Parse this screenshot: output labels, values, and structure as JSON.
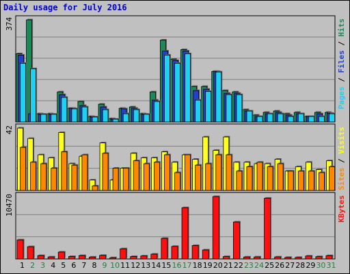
{
  "title": "Daily usage for July 2016",
  "colors": {
    "hits": "#1a8a5a",
    "files": "#2040d0",
    "pages": "#20d0f0",
    "visits": "#ffff20",
    "sites": "#ff8800",
    "kbytes": "#ff1010",
    "weekend_day": "#208040",
    "weekday": "#000000"
  },
  "chart_data": [
    {
      "type": "bar",
      "name_panel": "hits-files-pages",
      "axis_max_label": "374",
      "ylim": [
        0,
        374
      ],
      "series_labels": [
        "Pages",
        "Files",
        "Hits"
      ],
      "categories": [
        "1",
        "2",
        "3",
        "4",
        "5",
        "6",
        "7",
        "8",
        "9",
        "10",
        "11",
        "12",
        "13",
        "14",
        "15",
        "16",
        "17",
        "18",
        "19",
        "20",
        "21",
        "22",
        "23",
        "24",
        "25",
        "26",
        "27",
        "28",
        "29",
        "30",
        "31"
      ],
      "series": [
        {
          "name": "Hits",
          "values": [
            250,
            374,
            30,
            30,
            110,
            50,
            75,
            20,
            65,
            12,
            50,
            55,
            30,
            110,
            300,
            230,
            265,
            130,
            130,
            185,
            115,
            110,
            45,
            25,
            35,
            40,
            30,
            35,
            20,
            35,
            35
          ]
        },
        {
          "name": "Files",
          "values": [
            245,
            30,
            28,
            28,
            100,
            50,
            60,
            18,
            55,
            10,
            48,
            50,
            28,
            80,
            260,
            225,
            260,
            115,
            120,
            185,
            105,
            105,
            40,
            20,
            30,
            35,
            25,
            30,
            20,
            30,
            32
          ]
        },
        {
          "name": "Pages",
          "values": [
            215,
            195,
            28,
            28,
            90,
            48,
            55,
            18,
            45,
            10,
            30,
            45,
            28,
            75,
            245,
            215,
            250,
            80,
            112,
            183,
            100,
            100,
            40,
            20,
            30,
            30,
            20,
            30,
            20,
            20,
            30
          ]
        }
      ]
    },
    {
      "type": "bar",
      "name_panel": "visits-sites",
      "axis_max_label": "42",
      "ylim": [
        0,
        42
      ],
      "series_labels": [
        "Sites",
        "Visits"
      ],
      "categories": [
        "1",
        "2",
        "3",
        "4",
        "5",
        "6",
        "7",
        "8",
        "9",
        "10",
        "11",
        "12",
        "13",
        "14",
        "15",
        "16",
        "17",
        "18",
        "19",
        "20",
        "21",
        "22",
        "23",
        "24",
        "25",
        "26",
        "27",
        "28",
        "29",
        "30",
        "31"
      ],
      "series": [
        {
          "name": "Visits",
          "values": [
            42,
            35,
            24,
            22,
            39,
            18,
            23,
            7,
            32,
            7,
            15,
            25,
            22,
            22,
            26,
            19,
            24,
            21,
            36,
            27,
            36,
            19,
            19,
            18,
            18,
            21,
            13,
            16,
            19,
            14,
            20
          ]
        },
        {
          "name": "Sites",
          "values": [
            29,
            19,
            18,
            15,
            26,
            17,
            24,
            3,
            25,
            15,
            15,
            20,
            18,
            19,
            24,
            12,
            24,
            17,
            18,
            24,
            24,
            13,
            16,
            19,
            16,
            18,
            13,
            13,
            13,
            12,
            16
          ]
        }
      ]
    },
    {
      "type": "bar",
      "name_panel": "kbytes",
      "axis_max_label": "10470",
      "ylim": [
        0,
        10470
      ],
      "series_labels": [
        "KBytes"
      ],
      "categories": [
        "1",
        "2",
        "3",
        "4",
        "5",
        "6",
        "7",
        "8",
        "9",
        "10",
        "11",
        "12",
        "13",
        "14",
        "15",
        "16",
        "17",
        "18",
        "19",
        "20",
        "21",
        "22",
        "23",
        "24",
        "25",
        "26",
        "27",
        "28",
        "29",
        "30",
        "31"
      ],
      "series": [
        {
          "name": "KBytes",
          "values": [
            3200,
            2050,
            560,
            330,
            1150,
            400,
            560,
            310,
            590,
            200,
            1700,
            400,
            490,
            800,
            3450,
            2100,
            8600,
            2250,
            1500,
            10470,
            390,
            6200,
            320,
            330,
            10200,
            330,
            250,
            250,
            480,
            380,
            550
          ]
        }
      ]
    }
  ]
}
